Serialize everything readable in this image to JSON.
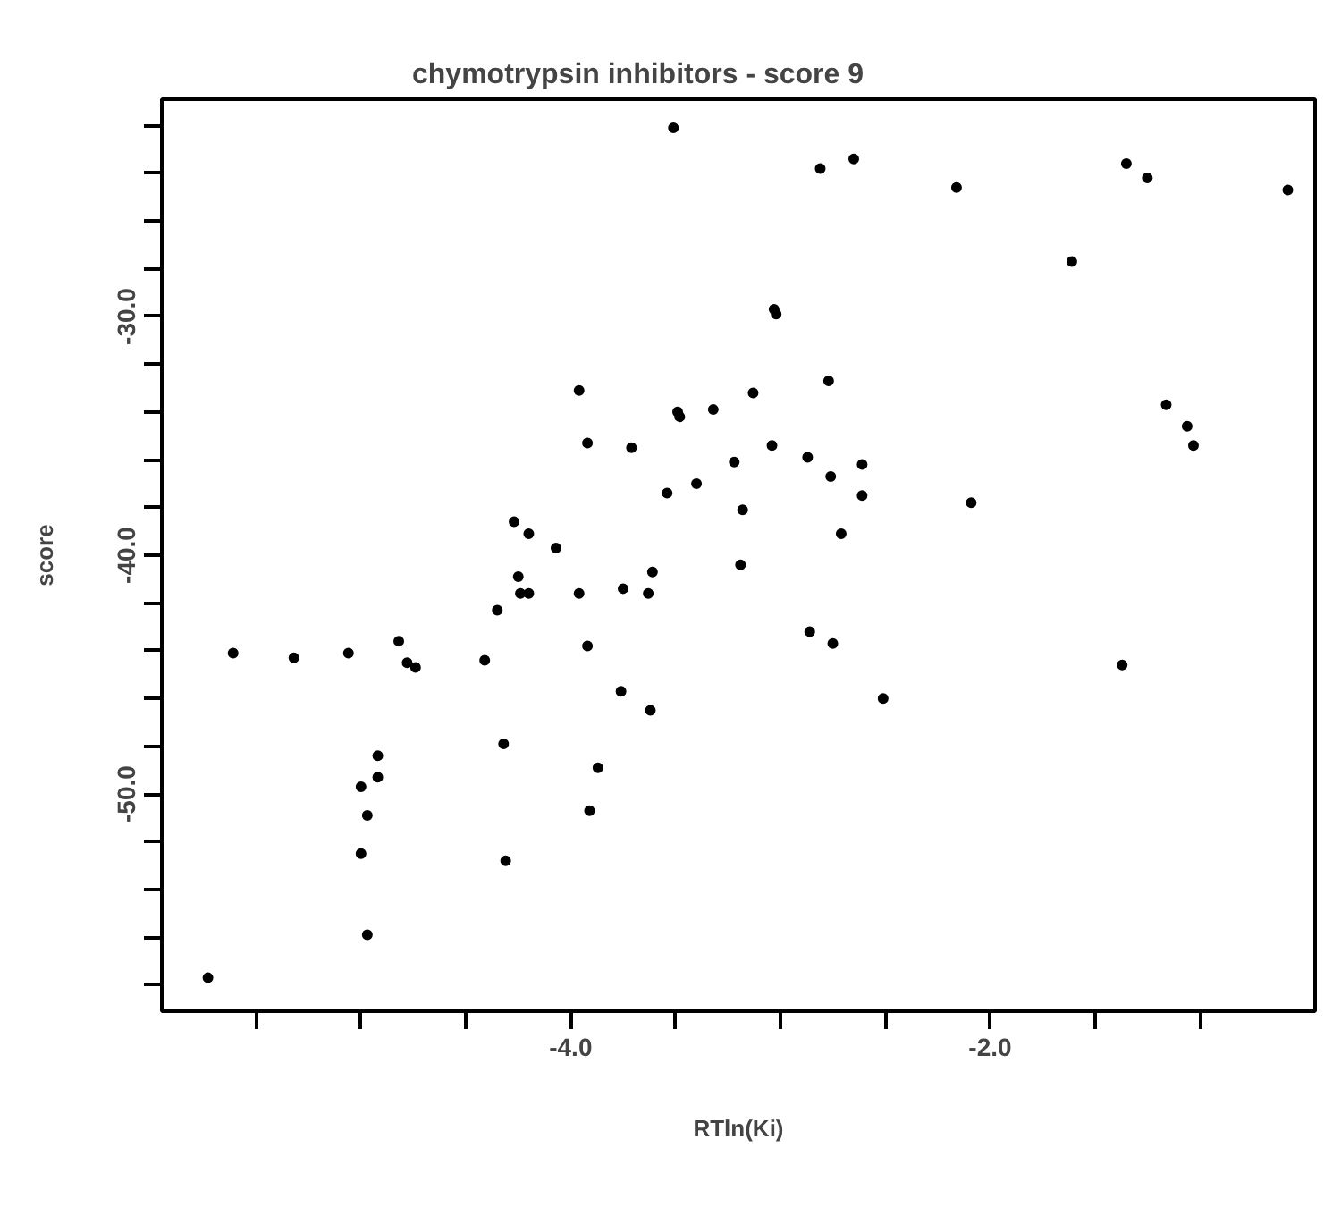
{
  "chart_data": {
    "type": "scatter",
    "title": "chymotrypsin inhibitors - score 9",
    "xlabel": "RTln(Ki)",
    "ylabel": "score",
    "xlim": [
      -5.95,
      -0.45
    ],
    "ylim": [
      -59.1,
      -20.9
    ],
    "xticks": [
      {
        "value": -5.5,
        "label": null
      },
      {
        "value": -5.0,
        "label": null
      },
      {
        "value": -4.5,
        "label": null
      },
      {
        "value": -4.0,
        "label": "-4.0"
      },
      {
        "value": -3.5,
        "label": null
      },
      {
        "value": -3.0,
        "label": null
      },
      {
        "value": -2.5,
        "label": null
      },
      {
        "value": -2.0,
        "label": "-2.0"
      },
      {
        "value": -1.5,
        "label": null
      },
      {
        "value": -1.0,
        "label": null
      }
    ],
    "yticks": [
      {
        "value": -58,
        "label": null
      },
      {
        "value": -56,
        "label": null
      },
      {
        "value": -54,
        "label": null
      },
      {
        "value": -52,
        "label": null
      },
      {
        "value": -50,
        "label": "-50.0"
      },
      {
        "value": -48,
        "label": null
      },
      {
        "value": -46,
        "label": null
      },
      {
        "value": -44,
        "label": null
      },
      {
        "value": -42,
        "label": null
      },
      {
        "value": -40,
        "label": "-40.0"
      },
      {
        "value": -38,
        "label": null
      },
      {
        "value": -36,
        "label": null
      },
      {
        "value": -34,
        "label": null
      },
      {
        "value": -32,
        "label": null
      },
      {
        "value": -30,
        "label": "-30.0"
      },
      {
        "value": -28,
        "label": null
      },
      {
        "value": -26,
        "label": null
      },
      {
        "value": -24,
        "label": null
      },
      {
        "value": -22,
        "label": null
      }
    ],
    "grid": false,
    "marker": "circle",
    "series": [
      {
        "color": "#000000",
        "x": [
          -3.51,
          -3.96,
          -3.49,
          -3.48,
          -3.32,
          -3.92,
          -3.71,
          -3.54,
          -3.4,
          -4.27,
          -4.2,
          -4.07,
          -2.81,
          -2.65,
          -2.16,
          -1.35,
          -1.25,
          -0.58,
          -1.61,
          -3.03,
          -3.02,
          -2.77,
          -3.13,
          -3.04,
          -3.22,
          -2.87,
          -2.61,
          -2.76,
          -2.61,
          -3.18,
          -2.09,
          -2.71,
          -1.16,
          -1.06,
          -1.03,
          -4.25,
          -4.35,
          -4.24,
          -4.2,
          -3.96,
          -3.75,
          -3.63,
          -3.61,
          -5.61,
          -5.32,
          -5.06,
          -4.82,
          -4.78,
          -4.74,
          -4.41,
          -3.92,
          -3.76,
          -3.62,
          -4.32,
          -3.87,
          -4.92,
          -4.92,
          -5.0,
          -4.97,
          -3.91,
          -5.0,
          -4.31,
          -4.97,
          -5.73,
          -3.19,
          -2.86,
          -2.75,
          -2.51,
          -1.37
        ],
        "values": [
          -22.1,
          -33.1,
          -34.0,
          -34.2,
          -33.9,
          -35.3,
          -35.5,
          -37.4,
          -37.0,
          -38.6,
          -39.1,
          -39.7,
          -23.8,
          -23.4,
          -24.6,
          -23.6,
          -24.2,
          -24.7,
          -27.7,
          -29.7,
          -29.9,
          -32.7,
          -33.2,
          -35.4,
          -36.1,
          -35.9,
          -36.2,
          -36.7,
          -37.5,
          -38.1,
          -37.8,
          -39.1,
          -33.7,
          -34.6,
          -35.4,
          -40.9,
          -42.3,
          -41.6,
          -41.6,
          -41.6,
          -41.4,
          -41.6,
          -40.7,
          -44.1,
          -44.3,
          -44.1,
          -43.6,
          -44.5,
          -44.7,
          -44.4,
          -43.8,
          -45.7,
          -46.5,
          -47.9,
          -48.9,
          -48.4,
          -49.3,
          -49.7,
          -50.9,
          -50.7,
          -52.5,
          -52.8,
          -55.9,
          -57.7,
          -40.4,
          -43.2,
          -43.7,
          -46.0,
          -44.6
        ]
      }
    ]
  }
}
